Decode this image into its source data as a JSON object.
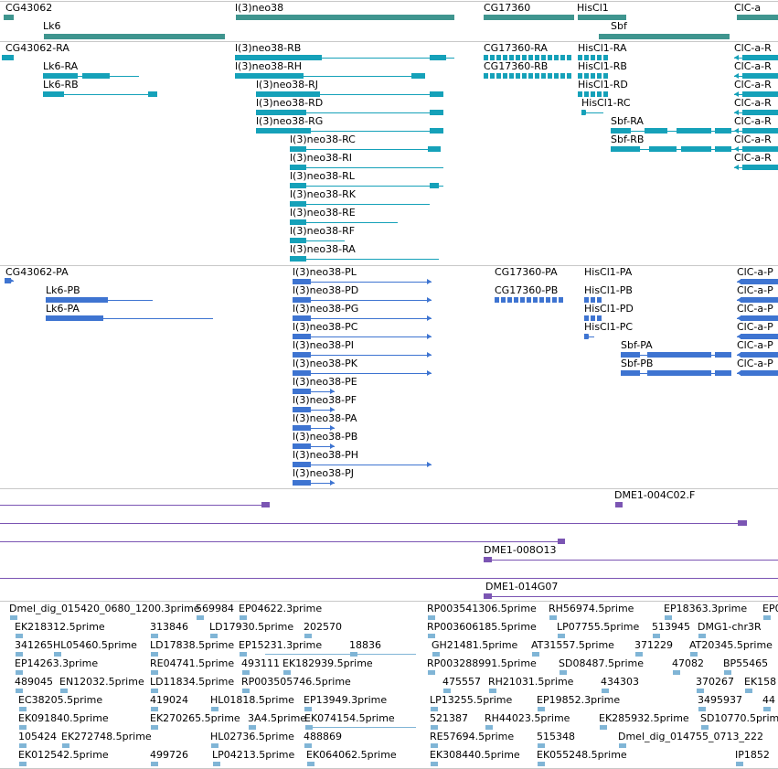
{
  "colors": {
    "gene": "#3f958f",
    "transcript": "#15a1b9",
    "protein": "#3e74d1",
    "clone": "#7b55b3",
    "est": "#80b5d6",
    "divider": "#c8c8c8"
  },
  "tracks": {
    "genes": {
      "items": [
        {
          "label": "CG43062"
        },
        {
          "label": "Lk6"
        },
        {
          "label": "l(3)neo38"
        },
        {
          "label": "CG17360"
        },
        {
          "label": "HisCl1"
        },
        {
          "label": "Sbf"
        },
        {
          "label": "ClC-a"
        }
      ]
    },
    "transcripts": {
      "items": [
        {
          "label": "CG43062-RA"
        },
        {
          "label": "Lk6-RA"
        },
        {
          "label": "Lk6-RB"
        },
        {
          "label": "l(3)neo38-RB"
        },
        {
          "label": "l(3)neo38-RH"
        },
        {
          "label": "l(3)neo38-RJ"
        },
        {
          "label": "l(3)neo38-RD"
        },
        {
          "label": "l(3)neo38-RG"
        },
        {
          "label": "l(3)neo38-RC"
        },
        {
          "label": "l(3)neo38-RI"
        },
        {
          "label": "l(3)neo38-RL"
        },
        {
          "label": "l(3)neo38-RK"
        },
        {
          "label": "l(3)neo38-RE"
        },
        {
          "label": "l(3)neo38-RF"
        },
        {
          "label": "l(3)neo38-RA"
        },
        {
          "label": "CG17360-RA"
        },
        {
          "label": "CG17360-RB"
        },
        {
          "label": "HisCl1-RA"
        },
        {
          "label": "HisCl1-RB"
        },
        {
          "label": "HisCl1-RD"
        },
        {
          "label": "HisCl1-RC"
        },
        {
          "label": "Sbf-RA"
        },
        {
          "label": "Sbf-RB"
        },
        {
          "label": "ClC-a-R"
        },
        {
          "label": "ClC-a-R"
        },
        {
          "label": "ClC-a-R"
        },
        {
          "label": "ClC-a-R"
        },
        {
          "label": "ClC-a-R"
        },
        {
          "label": "ClC-a-R"
        },
        {
          "label": "ClC-a-R"
        }
      ]
    },
    "proteins": {
      "items": [
        {
          "label": "CG43062-PA"
        },
        {
          "label": "Lk6-PB"
        },
        {
          "label": "Lk6-PA"
        },
        {
          "label": "l(3)neo38-PL"
        },
        {
          "label": "l(3)neo38-PD"
        },
        {
          "label": "l(3)neo38-PG"
        },
        {
          "label": "l(3)neo38-PC"
        },
        {
          "label": "l(3)neo38-PI"
        },
        {
          "label": "l(3)neo38-PK"
        },
        {
          "label": "l(3)neo38-PE"
        },
        {
          "label": "l(3)neo38-PF"
        },
        {
          "label": "l(3)neo38-PA"
        },
        {
          "label": "l(3)neo38-PB"
        },
        {
          "label": "l(3)neo38-PH"
        },
        {
          "label": "l(3)neo38-PJ"
        },
        {
          "label": "CG17360-PA"
        },
        {
          "label": "CG17360-PB"
        },
        {
          "label": "HisCl1-PA"
        },
        {
          "label": "HisCl1-PB"
        },
        {
          "label": "HisCl1-PD"
        },
        {
          "label": "HisCl1-PC"
        },
        {
          "label": "Sbf-PA"
        },
        {
          "label": "Sbf-PB"
        },
        {
          "label": "ClC-a-P"
        },
        {
          "label": "ClC-a-P"
        },
        {
          "label": "ClC-a-P"
        },
        {
          "label": "ClC-a-P"
        },
        {
          "label": "ClC-a-P"
        },
        {
          "label": "ClC-a-P"
        }
      ]
    },
    "clones": {
      "items": [
        {
          "label": ""
        },
        {
          "label": "DME1-004C02.F"
        },
        {
          "label": ""
        },
        {
          "label": ""
        },
        {
          "label": "DME1-008O13"
        },
        {
          "label": ""
        },
        {
          "label": "DME1-014G07"
        }
      ]
    },
    "ests": {
      "items": [
        {
          "label": "Dmel_dig_015420_0680_1200.3prime"
        },
        {
          "label": "569984"
        },
        {
          "label": "EP04622.3prime"
        },
        {
          "label": "RP003541306.5prime"
        },
        {
          "label": "RH56974.5prime"
        },
        {
          "label": "EP18363.3prime"
        },
        {
          "label": "EP0"
        },
        {
          "label": "EK218312.5prime"
        },
        {
          "label": "313846"
        },
        {
          "label": "LD17930.5prime"
        },
        {
          "label": "202570"
        },
        {
          "label": "RP003606185.5prime"
        },
        {
          "label": "LP07755.5prime"
        },
        {
          "label": "513945"
        },
        {
          "label": "DMG1-chr3R"
        },
        {
          "label": "341265"
        },
        {
          "label": "HL05460.5prime"
        },
        {
          "label": "LD17838.5prime"
        },
        {
          "label": "EP15231.3prime"
        },
        {
          "label": "18836"
        },
        {
          "label": "GH21481.5prime"
        },
        {
          "label": "AT31557.5prime"
        },
        {
          "label": "371229"
        },
        {
          "label": "AT20345.5prime"
        },
        {
          "label": "EP14263.3prime"
        },
        {
          "label": "RE04741.5prime"
        },
        {
          "label": "493111"
        },
        {
          "label": "EK182939.5prime"
        },
        {
          "label": "RP003288991.5prime"
        },
        {
          "label": "SD08487.5prime"
        },
        {
          "label": "47082"
        },
        {
          "label": "BP55465"
        },
        {
          "label": "489045"
        },
        {
          "label": "EN12032.5prime"
        },
        {
          "label": "LD11834.5prime"
        },
        {
          "label": "RP003505746.5prime"
        },
        {
          "label": "475557"
        },
        {
          "label": "RH21031.5prime"
        },
        {
          "label": "434303"
        },
        {
          "label": "370267"
        },
        {
          "label": "EK158"
        },
        {
          "label": "EC38205.5prime"
        },
        {
          "label": "419024"
        },
        {
          "label": "HL01818.5prime"
        },
        {
          "label": "EP13949.3prime"
        },
        {
          "label": "LP13255.5prime"
        },
        {
          "label": "EP19852.3prime"
        },
        {
          "label": "3495937"
        },
        {
          "label": "44"
        },
        {
          "label": "EK091840.5prime"
        },
        {
          "label": "EK270265.5prime"
        },
        {
          "label": "3A4.5prime"
        },
        {
          "label": "EK074154.5prime"
        },
        {
          "label": "521387"
        },
        {
          "label": "RH44023.5prime"
        },
        {
          "label": "EK285932.5prime"
        },
        {
          "label": "SD10770.5prime"
        },
        {
          "label": "105424"
        },
        {
          "label": "EK272748.5prime"
        },
        {
          "label": "HL02736.5prime"
        },
        {
          "label": "488869"
        },
        {
          "label": "RE57694.5prime"
        },
        {
          "label": "515348"
        },
        {
          "label": "Dmel_dig_014755_0713_222"
        },
        {
          "label": "EK012542.5prime"
        },
        {
          "label": "499726"
        },
        {
          "label": "LP04213.5prime"
        },
        {
          "label": "EK064062.5prime"
        },
        {
          "label": "EK308440.5prime"
        },
        {
          "label": "EK055248.5prime"
        },
        {
          "label": "IP1852"
        }
      ]
    }
  }
}
